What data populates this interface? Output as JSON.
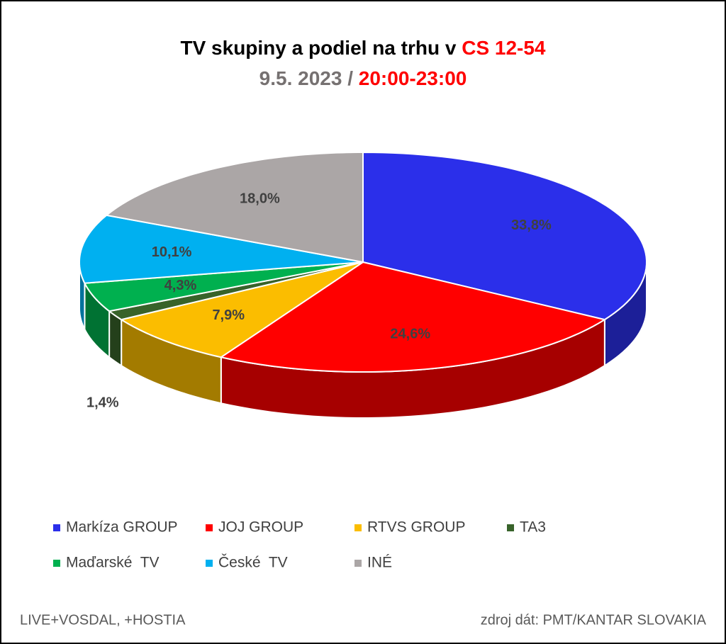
{
  "chart_data": {
    "type": "pie3d",
    "title": [
      "TV skupiny a podiel na trhu v",
      "CS 12-54"
    ],
    "subtitle": [
      "9.5. 2023 /",
      "20:00-23:00"
    ],
    "categories": [
      "Markíza GROUP",
      "JOJ GROUP",
      "RTVS GROUP",
      "TA3",
      "Maďarské  TV",
      "České  TV",
      "INÉ"
    ],
    "values": [
      33.8,
      24.6,
      7.9,
      1.4,
      4.3,
      10.1,
      18.0
    ],
    "value_labels": [
      "33,8%",
      "24,6%",
      "7,9%",
      "1,4%",
      "4,3%",
      "10,1%",
      "18,0%"
    ],
    "colors": [
      "#2b2fea",
      "#ff0000",
      "#fbbd00",
      "#38632a",
      "#00b04f",
      "#00b0f0",
      "#aba6a6"
    ],
    "notes": [
      "LIVE+VOSDAL, +HOSTIA",
      "zdroj dát: PMT/KANTAR SLOVAKIA"
    ]
  }
}
